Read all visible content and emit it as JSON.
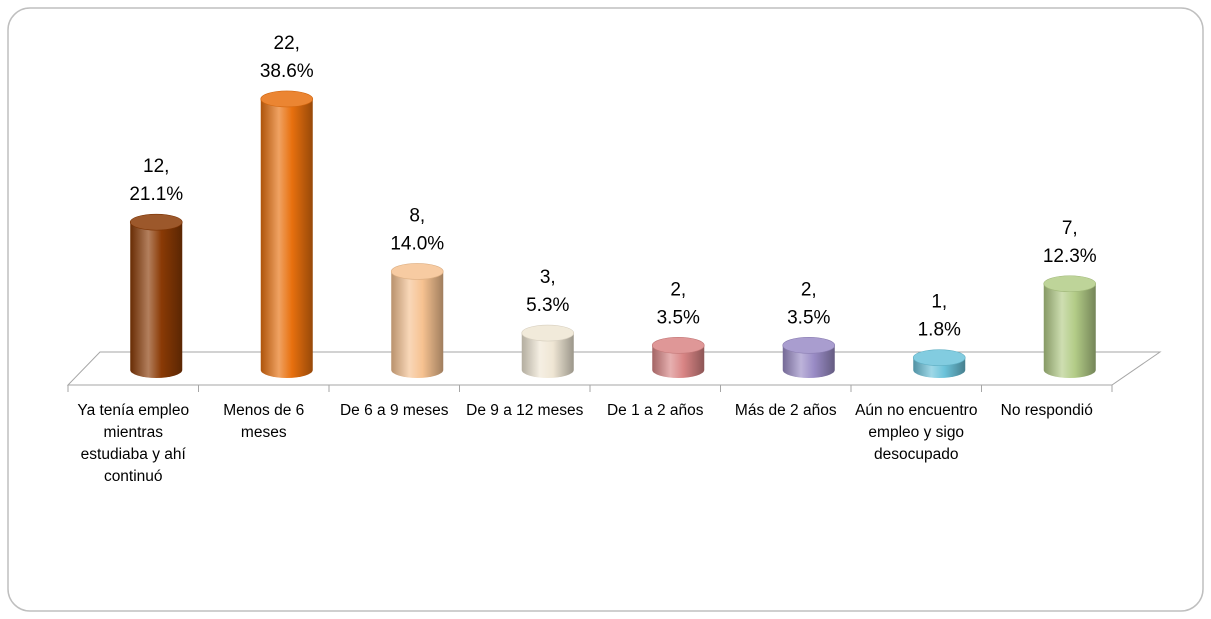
{
  "chart_data": {
    "type": "bar3d",
    "categories": [
      "Ya tenía empleo mientras estudiaba y ahí continuó",
      "Menos de 6 meses",
      "De 6 a 9 meses",
      "De 9 a 12 meses",
      "De 1 a 2 años",
      "Más de 2 años",
      "Aún no encuentro empleo y sigo desocupado",
      "No respondió"
    ],
    "values": [
      12,
      22,
      8,
      3,
      2,
      2,
      1,
      7
    ],
    "value_labels": [
      [
        "12,",
        "21.1%"
      ],
      [
        "22,",
        "38.6%"
      ],
      [
        "8,",
        "14.0%"
      ],
      [
        "3,",
        "5.3%"
      ],
      [
        "2,",
        "3.5%"
      ],
      [
        "2,",
        "3.5%"
      ],
      [
        "1,",
        "1.8%"
      ],
      [
        "7,",
        "12.3%"
      ]
    ],
    "colors": [
      "#8a3a05",
      "#e8700e",
      "#f6c291",
      "#efe6d4",
      "#d98585",
      "#9a8cc6",
      "#6cc3da",
      "#b3cc87"
    ],
    "ylim": [
      0,
      25
    ]
  }
}
